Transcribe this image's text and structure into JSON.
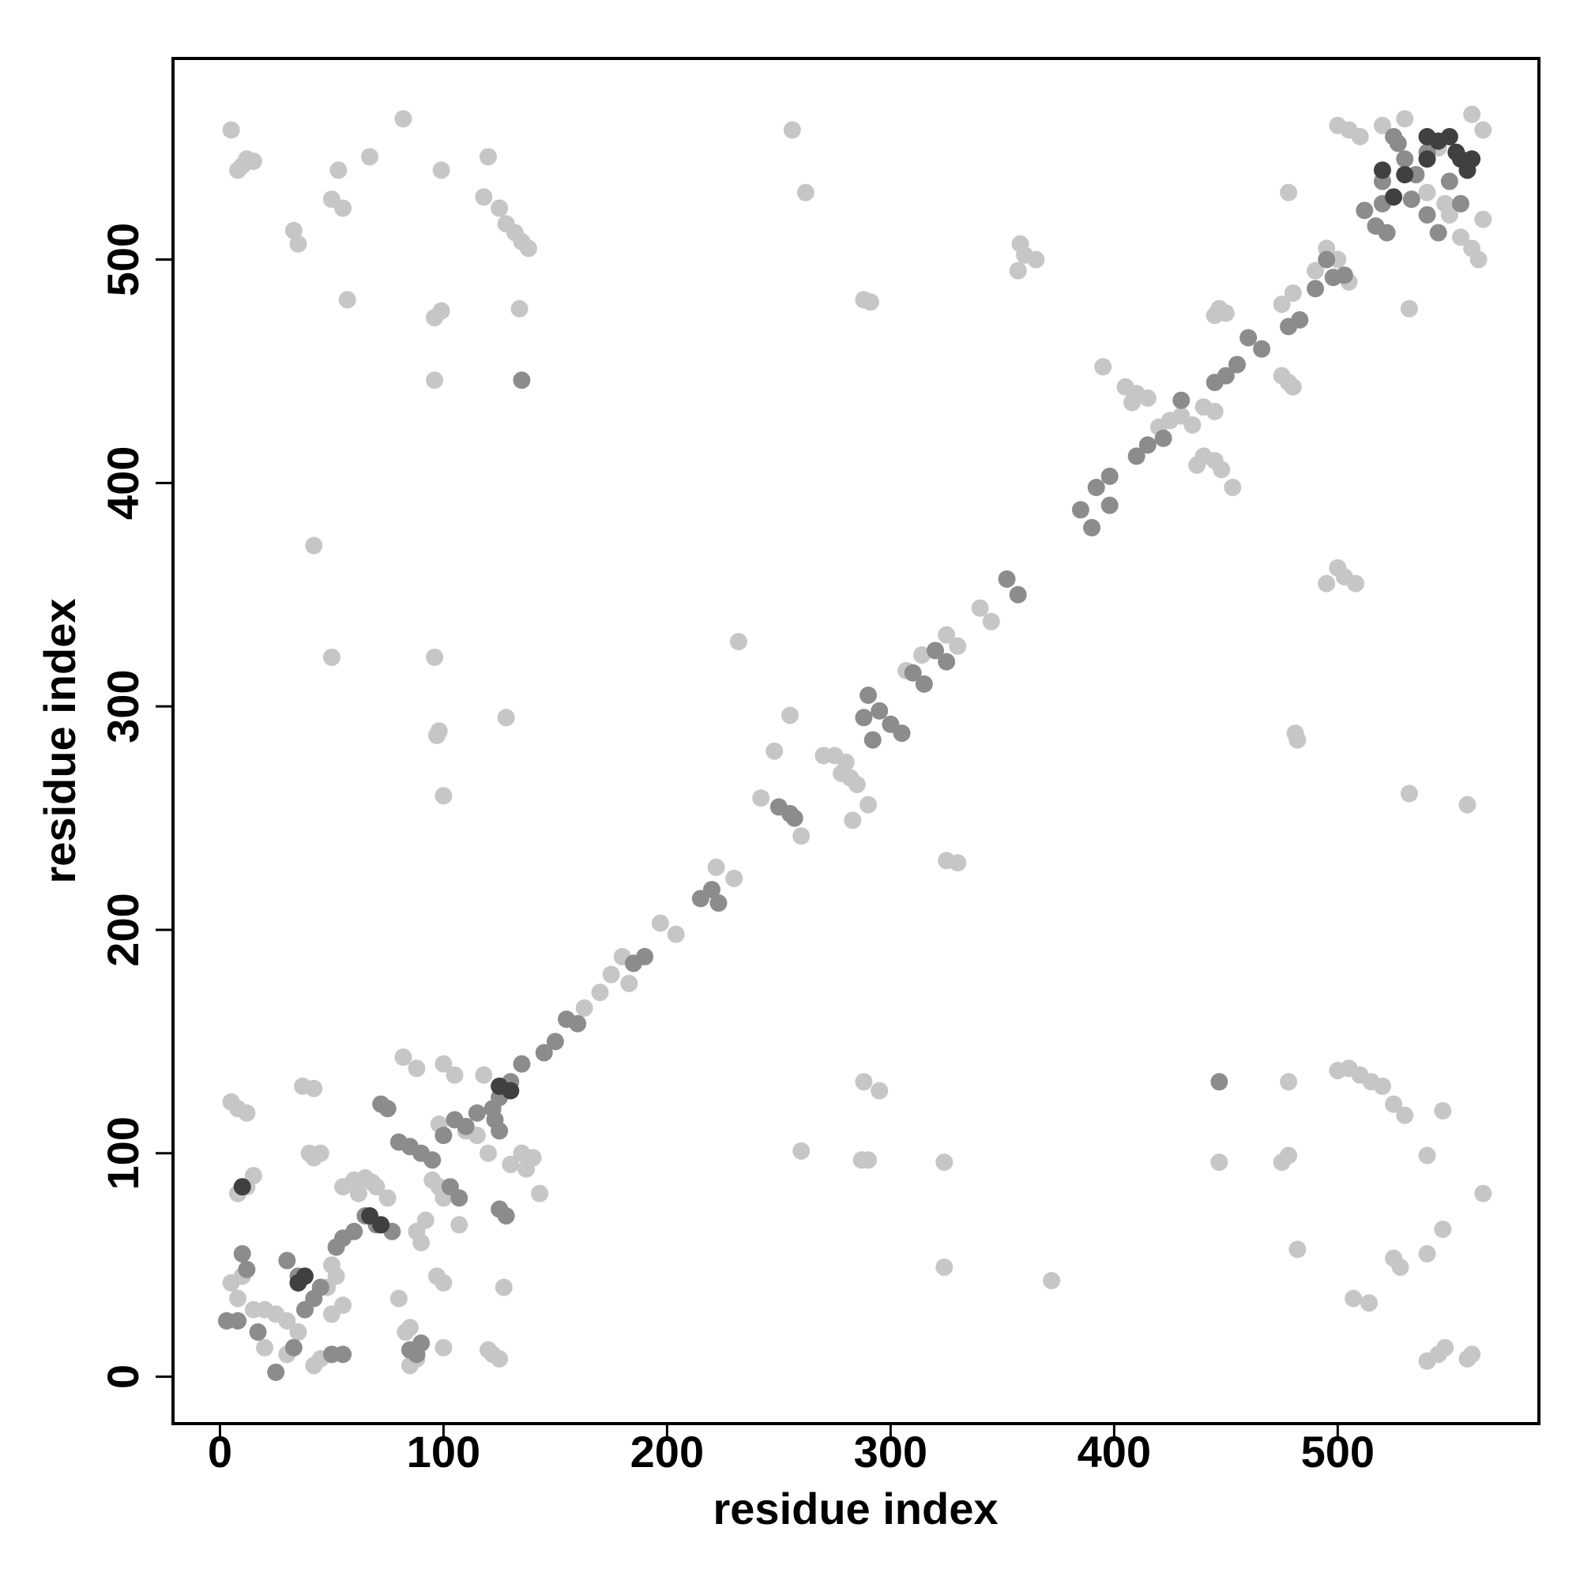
{
  "chart_data": {
    "type": "scatter",
    "xlabel": "residue index",
    "ylabel": "residue index",
    "xlim": [
      -21,
      590
    ],
    "ylim": [
      -21,
      590
    ],
    "xticks": [
      0,
      100,
      200,
      300,
      400,
      500
    ],
    "yticks": [
      0,
      100,
      200,
      300,
      400,
      500
    ],
    "grid": false,
    "series": [
      {
        "color": "#c6c6c6",
        "x": [
          5,
          8,
          12,
          10,
          15,
          82,
          53,
          67,
          99,
          120,
          33,
          35,
          50,
          55,
          118,
          125,
          128,
          132,
          135,
          138,
          57,
          96,
          99,
          134,
          96,
          42,
          50,
          96,
          97,
          98,
          128,
          100,
          256,
          262,
          358,
          360,
          365,
          357,
          288,
          291,
          500,
          505,
          510,
          520,
          530,
          545,
          560,
          565,
          550,
          555,
          560,
          563,
          565,
          540,
          548,
          532,
          478,
          495,
          500,
          505,
          490,
          480,
          475,
          447,
          450,
          445,
          395,
          405,
          410,
          415,
          408,
          440,
          445,
          420,
          425,
          430,
          435,
          440,
          445,
          448,
          437,
          453,
          475,
          478,
          480,
          500,
          503,
          495,
          508,
          481,
          482,
          532,
          558,
          340,
          345,
          325,
          330,
          314,
          307,
          280,
          278,
          275,
          285,
          282,
          290,
          283,
          270,
          255,
          248,
          242,
          260,
          232,
          330,
          325,
          222,
          230,
          197,
          204,
          180,
          175,
          170,
          163,
          183,
          288,
          295,
          260,
          287,
          290,
          324,
          324,
          372,
          447,
          475,
          478,
          478,
          482,
          500,
          505,
          510,
          515,
          520,
          525,
          530,
          547,
          540,
          565,
          547,
          525,
          528,
          540,
          507,
          514,
          540,
          545,
          548,
          560,
          558,
          5,
          8,
          12,
          8,
          12,
          15,
          10,
          5,
          8,
          15,
          20,
          25,
          30,
          35,
          20,
          30,
          42,
          45,
          50,
          40,
          42,
          45,
          37,
          42,
          55,
          60,
          65,
          68,
          70,
          62,
          75,
          50,
          52,
          48,
          55,
          50,
          80,
          83,
          85,
          88,
          90,
          92,
          95,
          98,
          100,
          97,
          100,
          98,
          100,
          105,
          110,
          115,
          120,
          118,
          82,
          88,
          135,
          140,
          137,
          130,
          143,
          120,
          122,
          125,
          85,
          88,
          100,
          127,
          107
        ],
        "values": [
          558,
          540,
          545,
          542,
          544,
          563,
          540,
          546,
          540,
          546,
          513,
          507,
          527,
          523,
          528,
          523,
          516,
          512,
          508,
          505,
          482,
          474,
          477,
          478,
          446,
          372,
          322,
          322,
          287,
          289,
          295,
          260,
          558,
          530,
          507,
          502,
          500,
          495,
          482,
          481,
          560,
          558,
          555,
          560,
          563,
          550,
          565,
          558,
          520,
          510,
          505,
          500,
          518,
          530,
          525,
          478,
          530,
          505,
          500,
          490,
          495,
          485,
          480,
          478,
          476,
          475,
          452,
          443,
          440,
          438,
          436,
          434,
          432,
          425,
          428,
          430,
          426,
          412,
          410,
          406,
          408,
          398,
          448,
          445,
          443,
          362,
          358,
          355,
          355,
          288,
          285,
          261,
          256,
          344,
          338,
          332,
          327,
          323,
          316,
          275,
          270,
          278,
          265,
          268,
          256,
          249,
          278,
          296,
          280,
          259,
          242,
          329,
          230,
          231,
          228,
          223,
          203,
          198,
          188,
          180,
          172,
          165,
          176,
          132,
          128,
          101,
          97,
          97,
          96,
          49,
          43,
          96,
          96,
          99,
          132,
          57,
          137,
          138,
          135,
          132,
          130,
          122,
          117,
          119,
          99,
          82,
          66,
          53,
          49,
          55,
          35,
          33,
          7,
          10,
          13,
          10,
          8,
          123,
          120,
          118,
          82,
          85,
          90,
          45,
          42,
          35,
          30,
          30,
          28,
          25,
          20,
          13,
          10,
          5,
          8,
          10,
          100,
          98,
          100,
          130,
          129,
          85,
          88,
          89,
          87,
          85,
          82,
          80,
          50,
          45,
          40,
          32,
          28,
          35,
          20,
          22,
          65,
          60,
          70,
          88,
          85,
          80,
          45,
          42,
          113,
          140,
          135,
          110,
          108,
          100,
          135,
          143,
          138,
          100,
          98,
          93,
          95,
          82,
          12,
          10,
          8,
          5,
          8,
          13,
          40,
          68
        ]
      },
      {
        "color": "#8c8c8c",
        "x": [
          520,
          517,
          522,
          512,
          535,
          530,
          527,
          520,
          540,
          545,
          555,
          525,
          540,
          498,
          503,
          495,
          483,
          490,
          478,
          466,
          460,
          455,
          450,
          445,
          430,
          422,
          415,
          410,
          398,
          392,
          398,
          385,
          390,
          352,
          357,
          325,
          320,
          315,
          310,
          300,
          295,
          290,
          288,
          292,
          305,
          257,
          250,
          255,
          220,
          215,
          223,
          190,
          185,
          160,
          155,
          150,
          145,
          135,
          130,
          125,
          122,
          110,
          105,
          100,
          115,
          107,
          103,
          95,
          90,
          85,
          80,
          75,
          72,
          77,
          70,
          65,
          60,
          55,
          52,
          45,
          42,
          38,
          35,
          30,
          10,
          12,
          8,
          3,
          25,
          33,
          17,
          50,
          55,
          88,
          85,
          90,
          125,
          128,
          125,
          123,
          447,
          135,
          550,
          533
        ],
        "values": [
          525,
          515,
          512,
          522,
          538,
          545,
          552,
          535,
          520,
          512,
          525,
          555,
          548,
          492,
          493,
          500,
          473,
          487,
          470,
          460,
          465,
          453,
          448,
          445,
          437,
          420,
          417,
          412,
          403,
          398,
          390,
          388,
          380,
          357,
          350,
          320,
          325,
          310,
          315,
          292,
          298,
          305,
          295,
          285,
          288,
          250,
          255,
          252,
          218,
          214,
          212,
          188,
          185,
          158,
          160,
          150,
          145,
          140,
          132,
          125,
          120,
          112,
          115,
          108,
          118,
          80,
          85,
          97,
          100,
          103,
          105,
          120,
          122,
          65,
          68,
          72,
          65,
          62,
          58,
          40,
          35,
          30,
          45,
          52,
          55,
          48,
          25,
          25,
          2,
          13,
          20,
          10,
          10,
          10,
          12,
          15,
          75,
          72,
          110,
          115,
          132,
          446,
          535,
          527
        ]
      },
      {
        "color": "#404040",
        "x": [
          540,
          545,
          550,
          555,
          558,
          553,
          530,
          525,
          38,
          35,
          67,
          72,
          130,
          125,
          10,
          540,
          520,
          560
        ],
        "values": [
          555,
          553,
          555,
          545,
          540,
          548,
          538,
          528,
          45,
          42,
          72,
          68,
          128,
          130,
          85,
          545,
          540,
          545
        ]
      }
    ]
  }
}
